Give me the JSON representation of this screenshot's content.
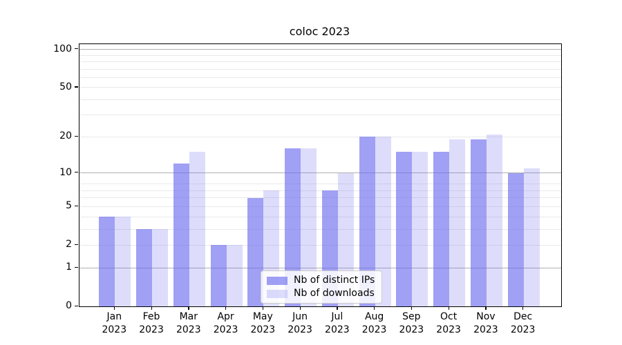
{
  "title": "coloc 2023",
  "chart_data": {
    "type": "bar",
    "title": "coloc 2023",
    "x_tick_months": [
      "Jan",
      "Feb",
      "Mar",
      "Apr",
      "May",
      "Jun",
      "Jul",
      "Aug",
      "Sep",
      "Oct",
      "Nov",
      "Dec"
    ],
    "x_tick_year": "2023",
    "series": [
      {
        "name": "Nb of distinct IPs",
        "color_hex": "#a3a3f1",
        "rgba": "rgba(102,102,238,0.62)",
        "values": [
          4,
          3,
          12,
          2,
          6,
          16,
          7,
          20,
          15,
          15,
          19,
          10
        ]
      },
      {
        "name": "Nb of downloads",
        "color_hex": "#dcdcf8",
        "rgba": "rgba(102,102,238,0.22)",
        "values": [
          4,
          3,
          15,
          2,
          7,
          16,
          10,
          20,
          15,
          19,
          21,
          11
        ]
      }
    ],
    "yscale": "log1p",
    "ylim": [
      0,
      110
    ],
    "yticks": [
      100,
      50,
      20,
      10,
      5,
      2,
      1,
      0
    ],
    "gridlines": {
      "major": [
        1,
        10,
        100
      ],
      "minor": [
        2,
        3,
        4,
        5,
        6,
        7,
        8,
        20,
        30,
        40,
        50,
        60,
        70,
        80,
        90
      ]
    },
    "legend": {
      "position": "lower center",
      "entries": [
        "Nb of distinct IPs",
        "Nb of downloads"
      ]
    }
  },
  "colors": {
    "major_grid": "#b0b0b0",
    "minor_grid": "#e9e9e9",
    "spine": "#000000",
    "bar_base": "#6666ee"
  }
}
